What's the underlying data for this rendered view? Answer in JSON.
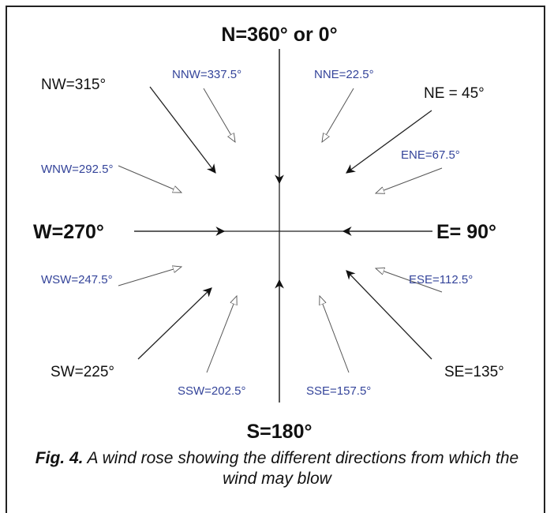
{
  "directions": [
    {
      "label": "N=360° or 0°"
    },
    {
      "label": "NE = 45°"
    },
    {
      "label": "E= 90°"
    },
    {
      "label": "SE=135°"
    },
    {
      "label": "S=180°"
    },
    {
      "label": "SW=225°"
    },
    {
      "label": "W=270°"
    },
    {
      "label": "NW=315°"
    },
    {
      "label": "NNE=22.5°"
    },
    {
      "label": "ENE=67.5°"
    },
    {
      "label": "ESE=112.5°"
    },
    {
      "label": "SSE=157.5°"
    },
    {
      "label": "SSW=202.5°"
    },
    {
      "label": "WSW=247.5°"
    },
    {
      "label": "WNW=292.5°"
    },
    {
      "label": "NNW=337.5°"
    }
  ],
  "caption": {
    "label": "Fig. 4.",
    "text": "A wind rose showing the different directions from which the wind may blow"
  }
}
